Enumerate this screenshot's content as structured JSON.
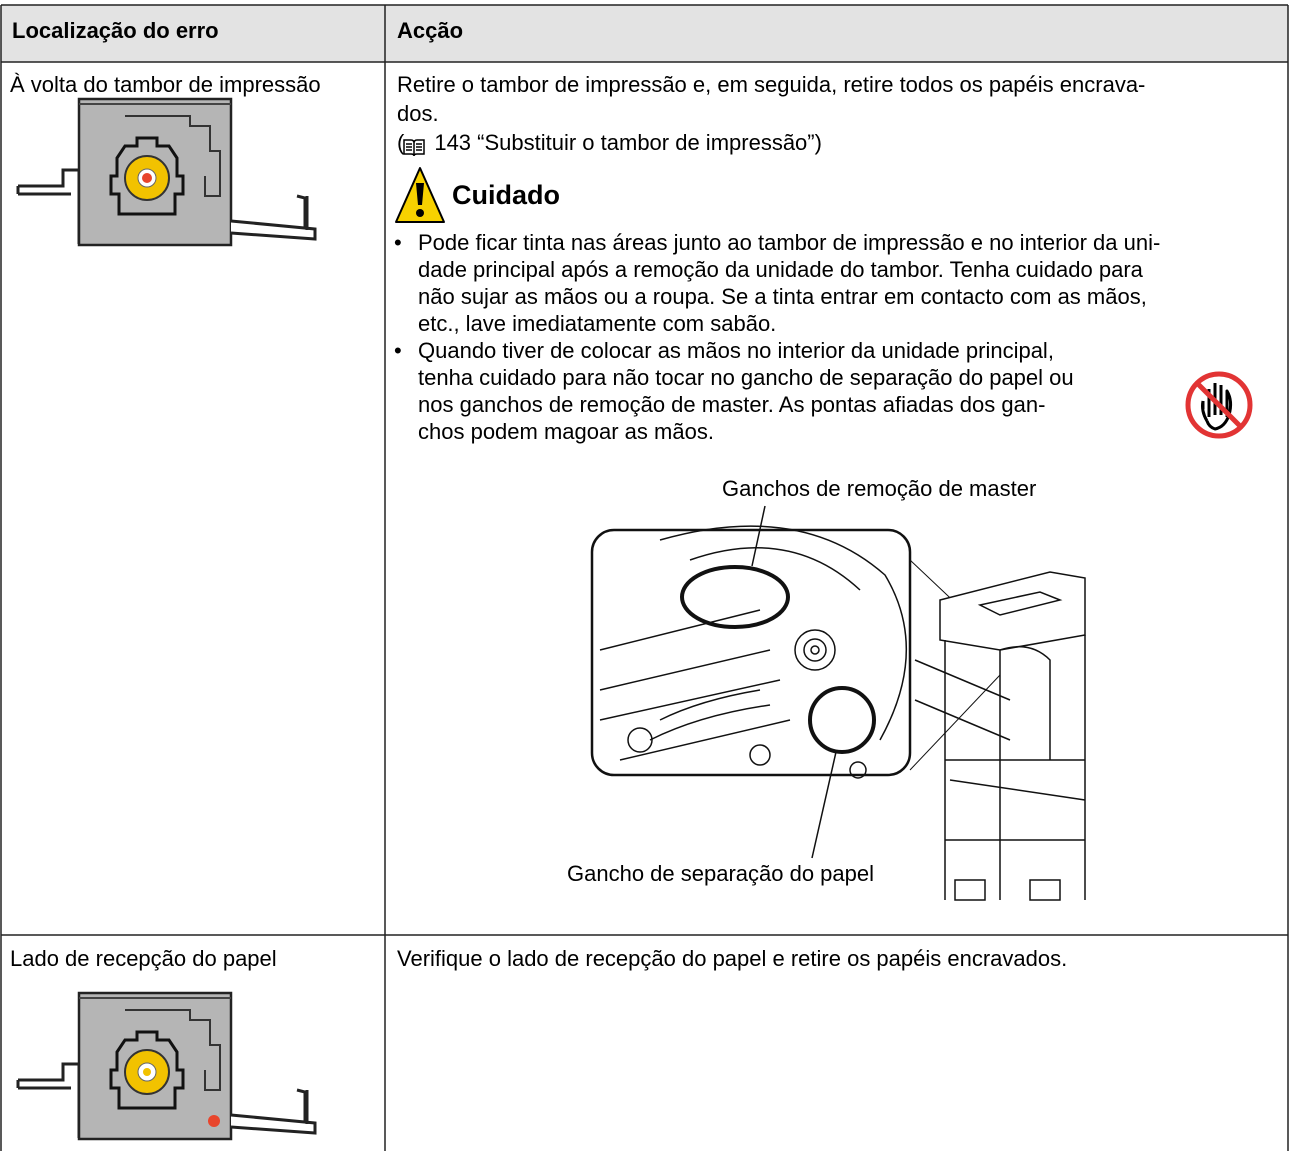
{
  "header": {
    "location": "Localização do erro",
    "action": "Acção"
  },
  "rows": [
    {
      "location": "À volta do tambor de impressão",
      "action_lines": [
        "Retire o tambor de impressão e, em seguida, retire todos os papéis encrava-",
        "dos."
      ],
      "reference": {
        "open": "(",
        "text": "143 “Substituir o tambor de impressão”)"
      },
      "caution": {
        "title": "Cuidado",
        "bullets": [
          [
            "Pode ficar tinta nas áreas junto ao tambor de impressão e no interior da uni-",
            "dade principal após a remoção da unidade do tambor. Tenha cuidado para",
            "não sujar as mãos ou a roupa. Se a tinta entrar em contacto com as mãos,",
            "etc., lave imediatamente com sabão."
          ],
          [
            "Quando tiver de colocar as mãos no interior da unidade principal,",
            "tenha cuidado para não tocar no gancho de separação do papel ou",
            "nos ganchos de remoção de master. As pontas afiadas dos gan-",
            "chos podem magoar as mãos."
          ]
        ]
      },
      "figure": {
        "label_top": "Ganchos de remoção de master",
        "label_bottom": "Gancho de separação do papel"
      }
    },
    {
      "location": "Lado de recepção do papel",
      "action_lines": [
        "Verifique o lado de recepção do papel e retire os papéis encravados."
      ]
    }
  ]
}
